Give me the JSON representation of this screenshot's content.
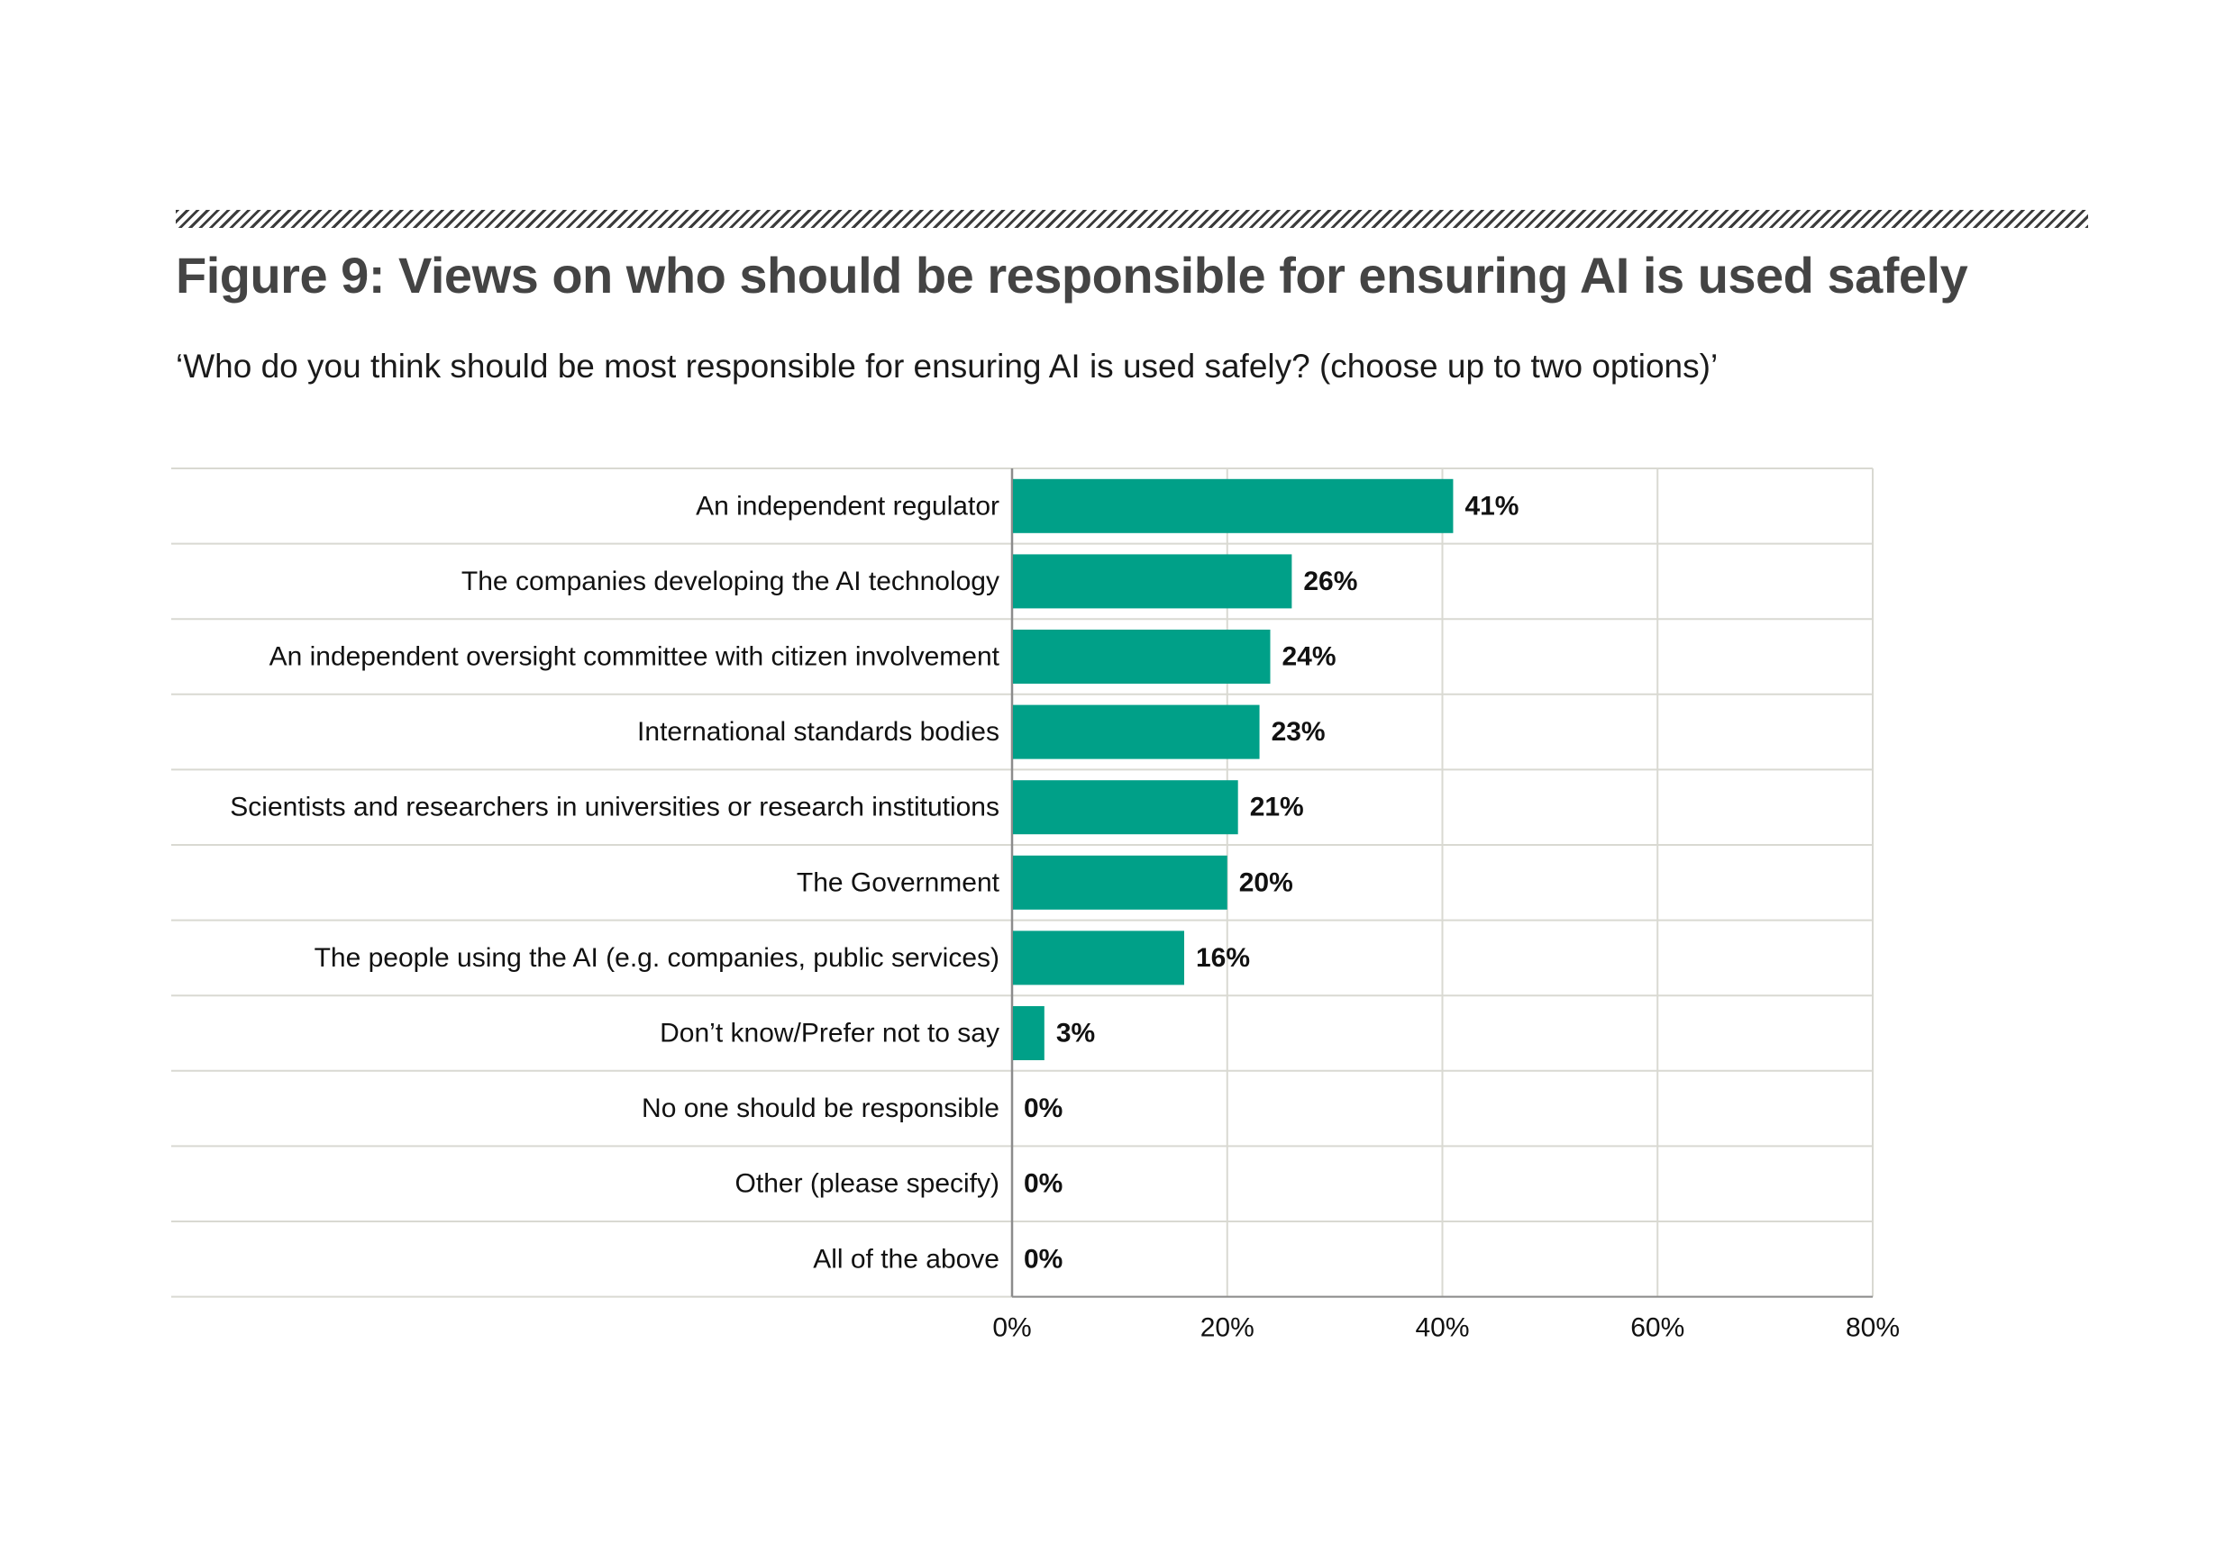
{
  "title": "Figure 9: Views on who should be responsible for ensuring AI is used safely",
  "subtitle": "‘Who do you think should be most responsible for ensuring AI is used safely? (choose up to two options)’",
  "colors": {
    "bar": "#00a088",
    "grid": "#d9d9d2",
    "axis": "#8c8c8c",
    "title": "#444444",
    "hatch": "#3b3b3b"
  },
  "chart_data": {
    "type": "bar",
    "orientation": "horizontal",
    "title": "Figure 9: Views on who should be responsible for ensuring AI is used safely",
    "subtitle": "‘Who do you think should be most responsible for ensuring AI is used safely? (choose up to two options)’",
    "categories": [
      "An independent regulator",
      "The companies developing the AI technology",
      "An independent oversight committee with citizen involvement",
      "International standards bodies",
      "Scientists and researchers in universities or research institutions",
      "The Government",
      "The people using the AI (e.g. companies, public services)",
      "Don’t know/Prefer not to say",
      "No one should be responsible",
      "Other (please specify)",
      "All of the above"
    ],
    "values": [
      41,
      26,
      24,
      23,
      21,
      20,
      16,
      3,
      0,
      0,
      0
    ],
    "value_labels": [
      "41%",
      "26%",
      "24%",
      "23%",
      "21%",
      "20%",
      "16%",
      "3%",
      "0%",
      "0%",
      "0%"
    ],
    "xlim": [
      0,
      80
    ],
    "xticks": [
      0,
      20,
      40,
      60,
      80
    ],
    "xtick_labels": [
      "0%",
      "20%",
      "40%",
      "60%",
      "80%"
    ],
    "xlabel": "",
    "ylabel": "",
    "grid": true,
    "legend": "none"
  }
}
